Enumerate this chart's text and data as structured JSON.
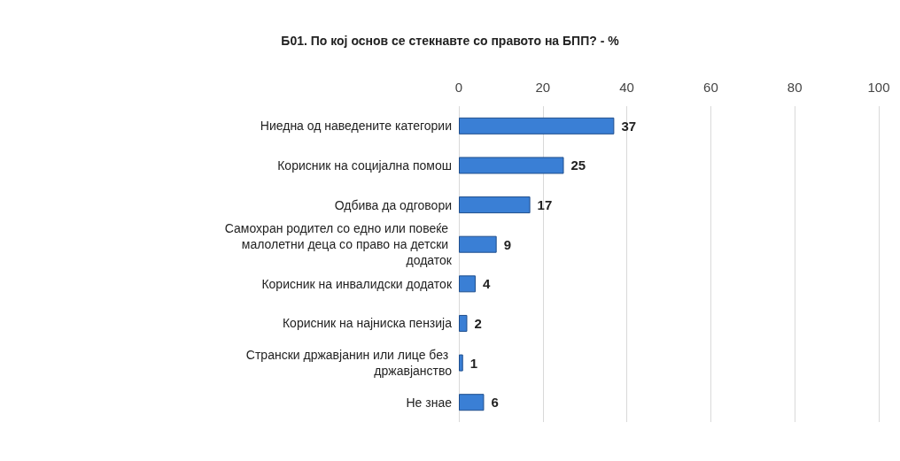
{
  "chart_data": {
    "type": "bar",
    "orientation": "horizontal",
    "title": "Б01. По кој основ се стекнавте со правото на БПП? - %",
    "categories": [
      "Ниедна од наведените категории",
      "Корисник на социјална помош",
      "Одбива да одговори",
      "Самохран родител со едно или повеќе малолетни деца со право на детски додаток",
      "Корисник на инвалидски додаток",
      "Корисник на најниска пензија",
      "Странски државјанин или лице без државјанство",
      "Не знае"
    ],
    "values": [
      37,
      25,
      17,
      9,
      4,
      2,
      1,
      6
    ],
    "color": "#3a7fd5",
    "xlim": [
      0,
      100
    ],
    "xticks": [
      0,
      20,
      40,
      60,
      80,
      100
    ],
    "grid": true,
    "data_labels": true
  }
}
